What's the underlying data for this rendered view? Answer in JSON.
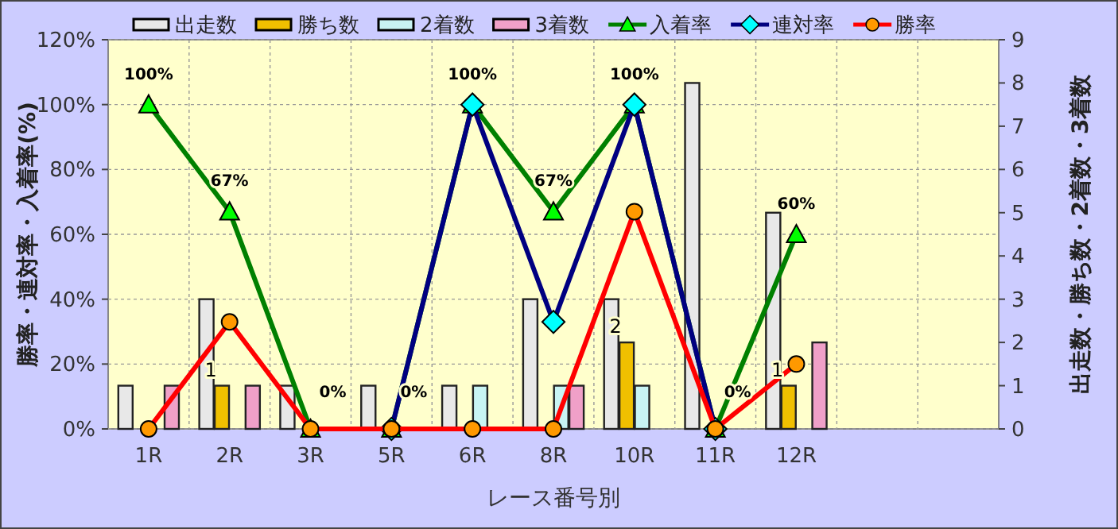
{
  "chart_data": {
    "type": "bar",
    "xlabel": "レース番号別",
    "ylabel": "勝率・連対率・入着率(%)",
    "y2label": "出走数・勝ち数・2着数・3着数",
    "categories": [
      "1R",
      "2R",
      "3R",
      "5R",
      "6R",
      "8R",
      "10R",
      "11R",
      "12R",
      null,
      null
    ],
    "series": [
      {
        "name": "出走数",
        "color": "#e8e8e8",
        "axis": "y2",
        "values": [
          1,
          3,
          1,
          1,
          1,
          3,
          3,
          8,
          5,
          null,
          null
        ]
      },
      {
        "name": "勝ち数",
        "color": "#f0c000",
        "axis": "y2",
        "values": [
          0,
          1,
          0,
          0,
          0,
          0,
          2,
          0,
          1,
          null,
          null
        ],
        "value_labels": [
          null,
          "1",
          null,
          null,
          null,
          null,
          "2",
          null,
          "1",
          null,
          null
        ]
      },
      {
        "name": "2着数",
        "color": "#c8f4f4",
        "axis": "y2",
        "values": [
          0,
          0,
          0,
          0,
          1,
          1,
          1,
          0,
          0,
          null,
          null
        ]
      },
      {
        "name": "3着数",
        "color": "#f0a0c8",
        "axis": "y2",
        "values": [
          1,
          1,
          0,
          0,
          0,
          1,
          0,
          0,
          2,
          null,
          null
        ]
      },
      {
        "name": "入着率",
        "type": "line",
        "marker": "triangle",
        "color": "#008000",
        "values": [
          100,
          67,
          0,
          0,
          100,
          67,
          100,
          0,
          60,
          null,
          null
        ],
        "value_labels": [
          "100%",
          "67%",
          "0%",
          "0%",
          "100%",
          "67%",
          "100%",
          "0%",
          "60%",
          null,
          null
        ]
      },
      {
        "name": "連対率",
        "type": "line",
        "marker": "diamond",
        "color": "#000080",
        "values": [
          null,
          null,
          null,
          0,
          100,
          33,
          100,
          0,
          null,
          null,
          null
        ]
      },
      {
        "name": "勝率",
        "type": "line",
        "marker": "circle",
        "color": "#ff0000",
        "values": [
          0,
          33,
          0,
          0,
          0,
          0,
          67,
          0,
          20,
          null,
          null
        ]
      }
    ],
    "ylim": [
      0,
      120
    ],
    "yticks": [
      {
        "value": 0,
        "label": "0%"
      },
      {
        "value": 20,
        "label": "20%"
      },
      {
        "value": 40,
        "label": "40%"
      },
      {
        "value": 60,
        "label": "60%"
      },
      {
        "value": 80,
        "label": "80%"
      },
      {
        "value": 100,
        "label": "100%"
      },
      {
        "value": 120,
        "label": "120%"
      }
    ],
    "y2lim": [
      0,
      9
    ],
    "y2ticks": [
      0,
      1,
      2,
      3,
      4,
      5,
      6,
      7,
      8,
      9
    ],
    "grid": true,
    "legend": "top"
  }
}
